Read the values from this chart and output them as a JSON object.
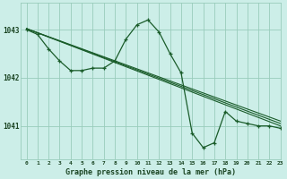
{
  "background_color": "#cceee8",
  "grid_color": "#99ccbb",
  "line_color": "#1a5c2a",
  "title": "Graphe pression niveau de la mer (hPa)",
  "xlim": [
    -0.5,
    23
  ],
  "ylim": [
    1040.3,
    1043.55
  ],
  "yticks": [
    1041,
    1042,
    1043
  ],
  "xtick_labels": [
    "0",
    "1",
    "2",
    "3",
    "4",
    "5",
    "6",
    "7",
    "8",
    "9",
    "10",
    "11",
    "12",
    "13",
    "14",
    "15",
    "16",
    "17",
    "18",
    "19",
    "20",
    "21",
    "22",
    "23"
  ],
  "trend1_x": [
    0,
    23
  ],
  "trend1_y": [
    1043.02,
    1041.0
  ],
  "trend2_x": [
    0,
    23
  ],
  "trend2_y": [
    1043.02,
    1041.05
  ],
  "trend3_x": [
    0,
    23
  ],
  "trend3_y": [
    1043.02,
    1041.1
  ],
  "main_x": [
    0,
    1,
    2,
    3,
    4,
    5,
    6,
    7,
    8,
    9,
    10,
    11,
    12,
    13,
    14,
    15,
    16,
    17,
    18,
    19,
    20,
    21,
    22,
    23
  ],
  "main_y": [
    1043.0,
    1042.9,
    1042.6,
    1042.35,
    1042.15,
    1042.15,
    1042.2,
    1042.2,
    1042.35,
    1042.8,
    1043.1,
    1043.2,
    1042.95,
    1042.5,
    1042.1,
    1040.85,
    1040.55,
    1040.65,
    1041.3,
    1041.1,
    1041.05,
    1041.0,
    1041.0,
    1040.95
  ]
}
